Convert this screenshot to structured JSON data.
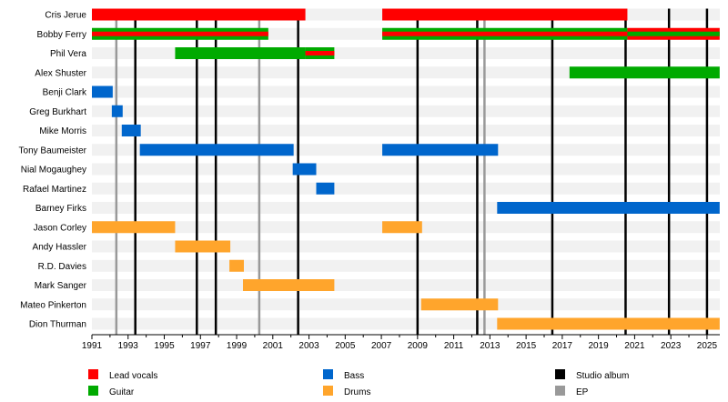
{
  "chart_data": {
    "type": "timeline",
    "xlim": [
      1991,
      2025.7
    ],
    "x_ticks": [
      "1991",
      "1993",
      "1995",
      "1997",
      "1999",
      "2001",
      "2003",
      "2005",
      "2007",
      "2009",
      "2011",
      "2013",
      "2015",
      "2017",
      "2019",
      "2021",
      "2023",
      "2025"
    ],
    "roles": {
      "vocals": {
        "label": "Lead vocals",
        "color": "#ff0000"
      },
      "guitar": {
        "label": "Guitar",
        "color": "#00aa00"
      },
      "bass": {
        "label": "Bass",
        "color": "#0066cc"
      },
      "drums": {
        "label": "Drums",
        "color": "#ffa52c"
      }
    },
    "events": {
      "studio": {
        "label": "Studio album",
        "color": "#000000",
        "years": [
          1993.4,
          1996.8,
          1997.85,
          2002.4,
          2009.0,
          2012.3,
          2016.45,
          2020.5,
          2022.9,
          2025.0
        ]
      },
      "ep": {
        "label": "EP",
        "color": "#999999",
        "years": [
          1992.35,
          2000.25,
          2012.7
        ]
      }
    },
    "members": [
      {
        "name": "Cris Jerue",
        "spans": [
          {
            "role": "vocals",
            "start": 1991,
            "end": 2002.8
          },
          {
            "role": "vocals",
            "start": 2007.05,
            "end": 2020.6
          }
        ]
      },
      {
        "name": "Bobby Ferry",
        "spans": [
          {
            "role": "guitar",
            "also": "vocals",
            "start": 1991,
            "end": 2000.75
          },
          {
            "role": "guitar",
            "also": "vocals",
            "start": 2007.05,
            "end": 2020.6
          },
          {
            "role": "vocals",
            "also": "guitar",
            "start": 2020.6,
            "end": 2025.7
          }
        ]
      },
      {
        "name": "Phil Vera",
        "spans": [
          {
            "role": "guitar",
            "start": 1995.6,
            "end": 2002.8
          },
          {
            "role": "guitar",
            "also": "vocals",
            "start": 2002.8,
            "end": 2004.4
          }
        ]
      },
      {
        "name": "Alex Shuster",
        "spans": [
          {
            "role": "guitar",
            "start": 2017.4,
            "end": 2025.7
          }
        ]
      },
      {
        "name": "Benji Clark",
        "spans": [
          {
            "role": "bass",
            "start": 1991,
            "end": 1992.15
          }
        ]
      },
      {
        "name": "Greg Burkhart",
        "spans": [
          {
            "role": "bass",
            "start": 1992.1,
            "end": 1992.7
          }
        ]
      },
      {
        "name": "Mike Morris",
        "spans": [
          {
            "role": "bass",
            "start": 1992.65,
            "end": 1993.7
          }
        ]
      },
      {
        "name": "Tony Baumeister",
        "spans": [
          {
            "role": "bass",
            "start": 1993.65,
            "end": 2002.15
          },
          {
            "role": "bass",
            "start": 2007.05,
            "end": 2013.45
          }
        ]
      },
      {
        "name": "Nial Mogaughey",
        "spans": [
          {
            "role": "bass",
            "start": 2002.1,
            "end": 2003.4
          }
        ]
      },
      {
        "name": "Rafael Martinez",
        "spans": [
          {
            "role": "bass",
            "start": 2003.4,
            "end": 2004.4
          }
        ]
      },
      {
        "name": "Barney Firks",
        "spans": [
          {
            "role": "bass",
            "start": 2013.4,
            "end": 2025.7
          }
        ]
      },
      {
        "name": "Jason Corley",
        "spans": [
          {
            "role": "drums",
            "start": 1991,
            "end": 1995.6
          },
          {
            "role": "drums",
            "start": 2007.05,
            "end": 2009.25
          }
        ]
      },
      {
        "name": "Andy Hassler",
        "spans": [
          {
            "role": "drums",
            "start": 1995.6,
            "end": 1998.65
          }
        ]
      },
      {
        "name": "R.D. Davies",
        "spans": [
          {
            "role": "drums",
            "start": 1998.6,
            "end": 1999.4
          }
        ]
      },
      {
        "name": "Mark Sanger",
        "spans": [
          {
            "role": "drums",
            "start": 1999.35,
            "end": 2004.4
          }
        ]
      },
      {
        "name": "Mateo Pinkerton",
        "spans": [
          {
            "role": "drums",
            "start": 2009.2,
            "end": 2013.45
          }
        ]
      },
      {
        "name": "Dion Thurman",
        "spans": [
          {
            "role": "drums",
            "start": 2013.4,
            "end": 2025.7
          }
        ]
      }
    ],
    "legend": [
      {
        "key": "vocals",
        "label": "Lead vocals",
        "color": "#ff0000"
      },
      {
        "key": "guitar",
        "label": "Guitar",
        "color": "#00aa00"
      },
      {
        "key": "bass",
        "label": "Bass",
        "color": "#0066cc"
      },
      {
        "key": "drums",
        "label": "Drums",
        "color": "#ffa52c"
      },
      {
        "key": "studio",
        "label": "Studio album",
        "color": "#000000"
      },
      {
        "key": "ep",
        "label": "EP",
        "color": "#999999"
      }
    ],
    "legend_placement": "bottom"
  }
}
